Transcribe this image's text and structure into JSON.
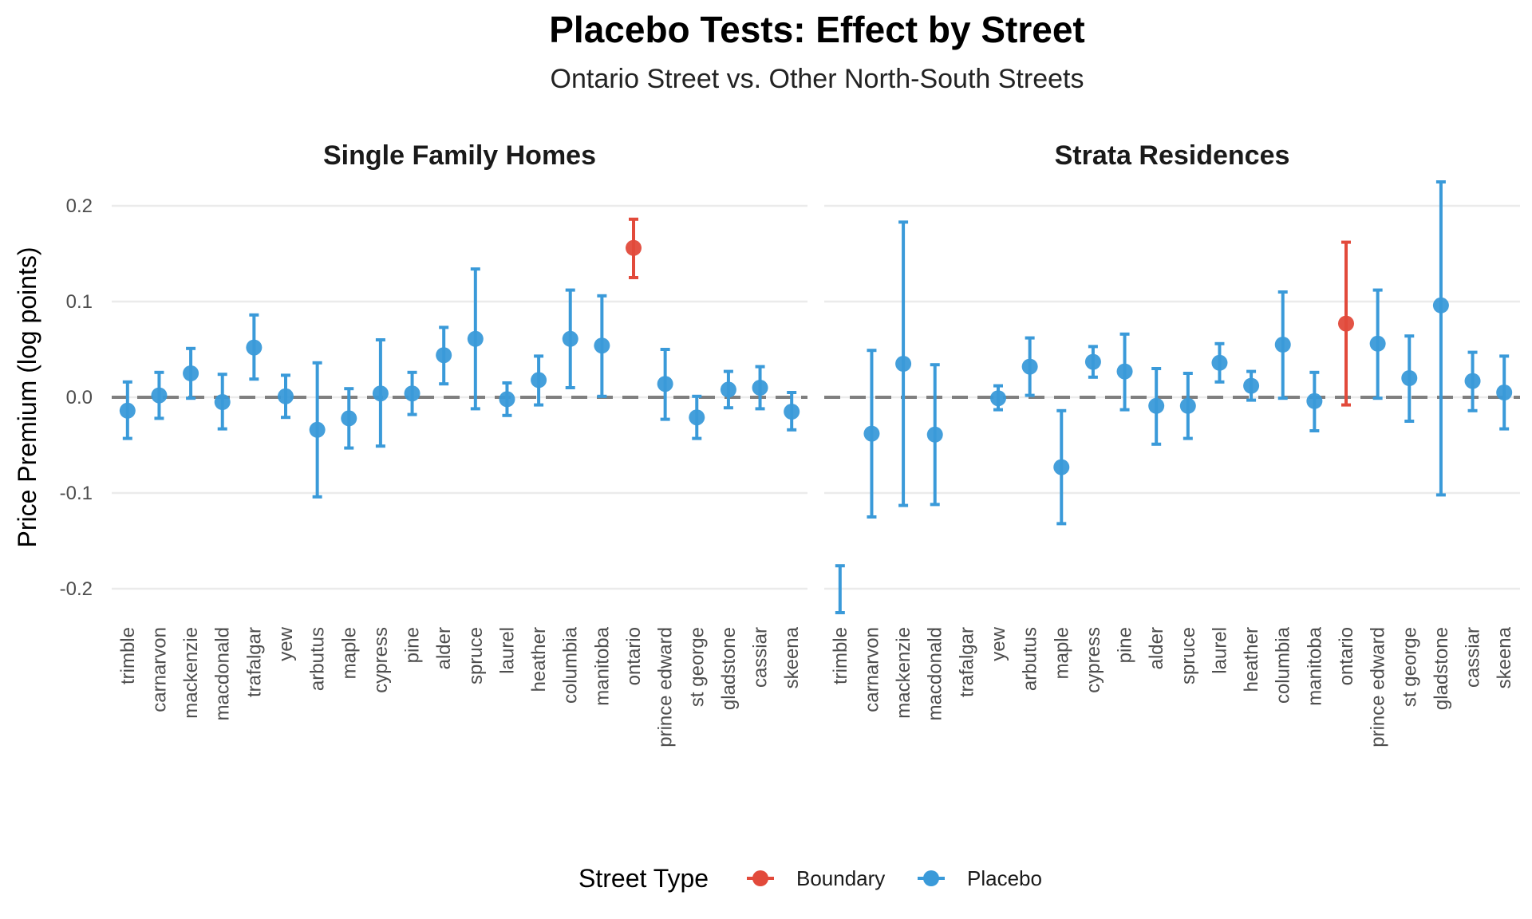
{
  "chart_data": {
    "type": "scatter",
    "title": "Placebo Tests: Effect by Street",
    "subtitle": "Ontario Street vs. Other North-South Streets",
    "ylabel": "Price Premium (log points)",
    "ylim": [
      -0.225,
      0.225
    ],
    "yticks": [
      -0.2,
      -0.1,
      0.0,
      0.1,
      0.2
    ],
    "ytick_labels": [
      "-0.2",
      "-0.1",
      "0.0",
      "0.1",
      "0.2"
    ],
    "grid": true,
    "reference_line": 0,
    "legend": {
      "title": "Street Type",
      "position": "bottom",
      "items": [
        {
          "name": "Boundary",
          "color": "#e24a3b"
        },
        {
          "name": "Placebo",
          "color": "#3a9ad9"
        }
      ]
    },
    "categories": [
      "trimble",
      "carnarvon",
      "mackenzie",
      "macdonald",
      "trafalgar",
      "yew",
      "arbutus",
      "maple",
      "cypress",
      "pine",
      "alder",
      "spruce",
      "laurel",
      "heather",
      "columbia",
      "manitoba",
      "ontario",
      "prince edward",
      "st george",
      "gladstone",
      "cassiar",
      "skeena"
    ],
    "panels": [
      {
        "name": "Single Family Homes",
        "points": [
          {
            "street": "trimble",
            "type": "Placebo",
            "estimate": -0.014,
            "low": -0.043,
            "high": 0.016
          },
          {
            "street": "carnarvon",
            "type": "Placebo",
            "estimate": 0.002,
            "low": -0.022,
            "high": 0.026
          },
          {
            "street": "mackenzie",
            "type": "Placebo",
            "estimate": 0.025,
            "low": -0.001,
            "high": 0.051
          },
          {
            "street": "macdonald",
            "type": "Placebo",
            "estimate": -0.005,
            "low": -0.033,
            "high": 0.024
          },
          {
            "street": "trafalgar",
            "type": "Placebo",
            "estimate": 0.052,
            "low": 0.019,
            "high": 0.086
          },
          {
            "street": "yew",
            "type": "Placebo",
            "estimate": 0.001,
            "low": -0.021,
            "high": 0.023
          },
          {
            "street": "arbutus",
            "type": "Placebo",
            "estimate": -0.034,
            "low": -0.104,
            "high": 0.036
          },
          {
            "street": "maple",
            "type": "Placebo",
            "estimate": -0.022,
            "low": -0.053,
            "high": 0.009
          },
          {
            "street": "cypress",
            "type": "Placebo",
            "estimate": 0.004,
            "low": -0.051,
            "high": 0.06
          },
          {
            "street": "pine",
            "type": "Placebo",
            "estimate": 0.004,
            "low": -0.018,
            "high": 0.026
          },
          {
            "street": "alder",
            "type": "Placebo",
            "estimate": 0.044,
            "low": 0.014,
            "high": 0.073
          },
          {
            "street": "spruce",
            "type": "Placebo",
            "estimate": 0.061,
            "low": -0.012,
            "high": 0.134
          },
          {
            "street": "laurel",
            "type": "Placebo",
            "estimate": -0.002,
            "low": -0.019,
            "high": 0.015
          },
          {
            "street": "heather",
            "type": "Placebo",
            "estimate": 0.018,
            "low": -0.008,
            "high": 0.043
          },
          {
            "street": "columbia",
            "type": "Placebo",
            "estimate": 0.061,
            "low": 0.01,
            "high": 0.112
          },
          {
            "street": "manitoba",
            "type": "Placebo",
            "estimate": 0.054,
            "low": 0.001,
            "high": 0.106
          },
          {
            "street": "ontario",
            "type": "Boundary",
            "estimate": 0.156,
            "low": 0.125,
            "high": 0.186
          },
          {
            "street": "prince edward",
            "type": "Placebo",
            "estimate": 0.014,
            "low": -0.023,
            "high": 0.05
          },
          {
            "street": "st george",
            "type": "Placebo",
            "estimate": -0.021,
            "low": -0.043,
            "high": 0.001
          },
          {
            "street": "gladstone",
            "type": "Placebo",
            "estimate": 0.008,
            "low": -0.011,
            "high": 0.027
          },
          {
            "street": "cassiar",
            "type": "Placebo",
            "estimate": 0.01,
            "low": -0.012,
            "high": 0.032
          },
          {
            "street": "skeena",
            "type": "Placebo",
            "estimate": -0.015,
            "low": -0.034,
            "high": 0.005
          }
        ]
      },
      {
        "name": "Strata Residences",
        "points": [
          {
            "street": "trimble",
            "type": "Placebo",
            "estimate": null,
            "low": -0.225,
            "high": -0.176
          },
          {
            "street": "carnarvon",
            "type": "Placebo",
            "estimate": -0.038,
            "low": -0.125,
            "high": 0.049
          },
          {
            "street": "mackenzie",
            "type": "Placebo",
            "estimate": 0.035,
            "low": -0.113,
            "high": 0.183
          },
          {
            "street": "macdonald",
            "type": "Placebo",
            "estimate": -0.039,
            "low": -0.112,
            "high": 0.034
          },
          {
            "street": "yew",
            "type": "Placebo",
            "estimate": -0.001,
            "low": -0.013,
            "high": 0.012
          },
          {
            "street": "arbutus",
            "type": "Placebo",
            "estimate": 0.032,
            "low": 0.002,
            "high": 0.062
          },
          {
            "street": "maple",
            "type": "Placebo",
            "estimate": -0.073,
            "low": -0.132,
            "high": -0.014
          },
          {
            "street": "cypress",
            "type": "Placebo",
            "estimate": 0.037,
            "low": 0.021,
            "high": 0.053
          },
          {
            "street": "pine",
            "type": "Placebo",
            "estimate": 0.027,
            "low": -0.013,
            "high": 0.066
          },
          {
            "street": "alder",
            "type": "Placebo",
            "estimate": -0.009,
            "low": -0.049,
            "high": 0.03
          },
          {
            "street": "spruce",
            "type": "Placebo",
            "estimate": -0.009,
            "low": -0.043,
            "high": 0.025
          },
          {
            "street": "laurel",
            "type": "Placebo",
            "estimate": 0.036,
            "low": 0.016,
            "high": 0.056
          },
          {
            "street": "heather",
            "type": "Placebo",
            "estimate": 0.012,
            "low": -0.003,
            "high": 0.027
          },
          {
            "street": "columbia",
            "type": "Placebo",
            "estimate": 0.055,
            "low": -0.001,
            "high": 0.11
          },
          {
            "street": "manitoba",
            "type": "Placebo",
            "estimate": -0.004,
            "low": -0.035,
            "high": 0.026
          },
          {
            "street": "ontario",
            "type": "Boundary",
            "estimate": 0.077,
            "low": -0.008,
            "high": 0.162
          },
          {
            "street": "prince edward",
            "type": "Placebo",
            "estimate": 0.056,
            "low": -0.001,
            "high": 0.112
          },
          {
            "street": "st george",
            "type": "Placebo",
            "estimate": 0.02,
            "low": -0.025,
            "high": 0.064
          },
          {
            "street": "gladstone",
            "type": "Placebo",
            "estimate": 0.096,
            "low": -0.102,
            "high": 0.225
          },
          {
            "street": "cassiar",
            "type": "Placebo",
            "estimate": 0.017,
            "low": -0.014,
            "high": 0.047
          },
          {
            "street": "skeena",
            "type": "Placebo",
            "estimate": 0.005,
            "low": -0.033,
            "high": 0.043
          }
        ]
      }
    ]
  }
}
